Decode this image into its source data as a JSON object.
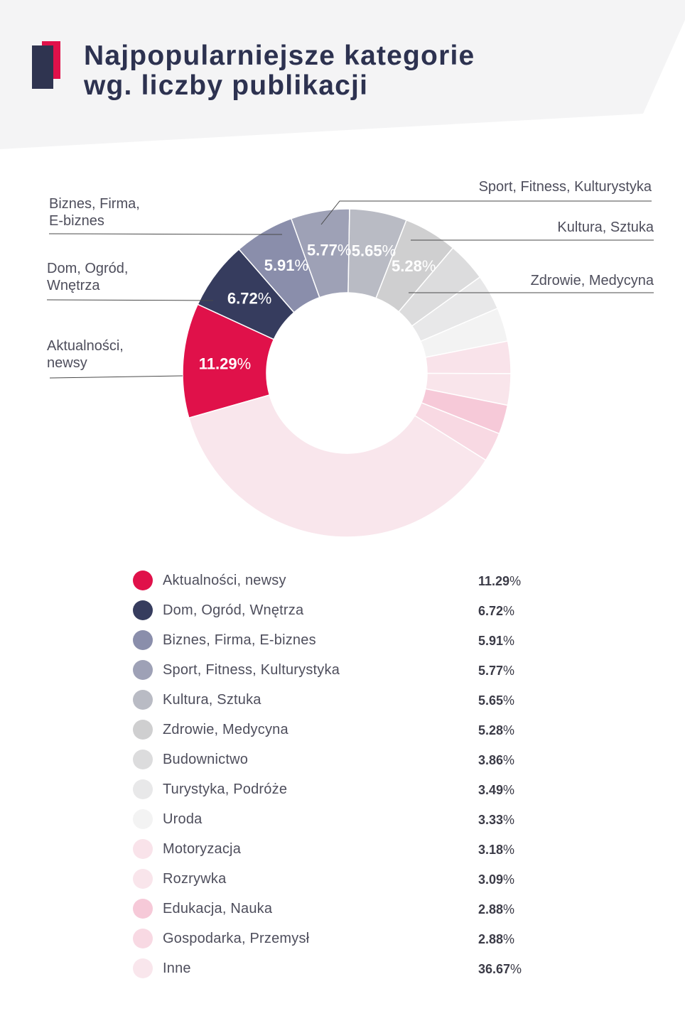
{
  "colors": {
    "header_bg": "#f4f4f5",
    "title": "#2d3250",
    "logo_red": "#e0114a",
    "logo_navy": "#2f3450",
    "text": "#4e4e5c",
    "value_text": "#3b3b47",
    "data_label": "#ffffff",
    "leader_line": "#4a4a4a"
  },
  "chart_data": {
    "type": "pie",
    "style": "donut",
    "title": "Najpopularniejsze kategorie wg. liczby publikacji",
    "unit": "%",
    "legend_position": "bottom",
    "categories": [
      "Aktualności, newsy",
      "Dom, Ogród, Wnętrza",
      "Biznes, Firma, E-biznes",
      "Sport, Fitness, Kulturystyka",
      "Kultura, Sztuka",
      "Zdrowie, Medycyna",
      "Budownictwo",
      "Turystyka, Podróże",
      "Uroda",
      "Motoryzacja",
      "Rozrywka",
      "Edukacja, Nauka",
      "Gospodarka, Przemysł",
      "Inne"
    ],
    "values": [
      11.29,
      6.72,
      5.91,
      5.77,
      5.65,
      5.28,
      3.86,
      3.49,
      3.33,
      3.18,
      3.09,
      2.88,
      2.88,
      36.67
    ],
    "colors": [
      "#e0114a",
      "#363c5e",
      "#8a8eab",
      "#9ea1b6",
      "#b9bbc4",
      "#cfcfd0",
      "#dcdcdd",
      "#e8e8e9",
      "#f3f3f3",
      "#f9e3ea",
      "#f9e5eb",
      "#f6c9d8",
      "#f8d9e3",
      "#f9e6ec"
    ]
  }
}
